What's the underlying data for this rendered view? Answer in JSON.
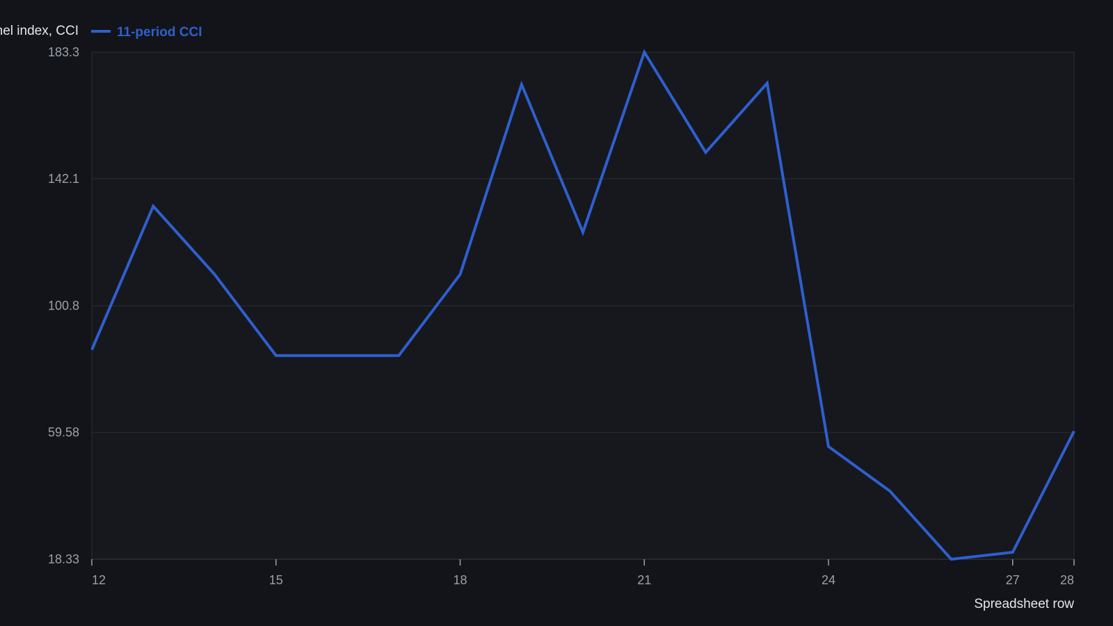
{
  "colors": {
    "background": "#121419",
    "plot_background": "#16181d",
    "series": "#2f5fcf",
    "grid": "#2a2e35",
    "axis_text": "#9aa0aa",
    "title_text": "#e4e6ea"
  },
  "chart_data": {
    "type": "line",
    "title": "",
    "xlabel": "Spreadsheet row",
    "ylabel": "",
    "legend_position": "top-left",
    "legend_prefix": "nel index, CCI",
    "grid": true,
    "xlim": [
      12,
      28
    ],
    "ylim": [
      18.33,
      183.3
    ],
    "x_ticks": [
      "12",
      "15",
      "18",
      "21",
      "24",
      "27",
      "28"
    ],
    "y_ticks": [
      "183.3",
      "142.1",
      "100.8",
      "59.58",
      "18.33"
    ],
    "series": [
      {
        "name": "11-period CCI",
        "x": [
          12,
          13,
          14,
          15,
          16,
          17,
          18,
          19,
          20,
          21,
          22,
          23,
          24,
          25,
          26,
          27,
          28
        ],
        "y": [
          86.5,
          133.2,
          111.0,
          84.6,
          84.6,
          84.6,
          111.0,
          172.8,
          124.7,
          183.3,
          150.7,
          173.2,
          55.0,
          40.5,
          18.33,
          20.6,
          60.0
        ]
      }
    ]
  }
}
